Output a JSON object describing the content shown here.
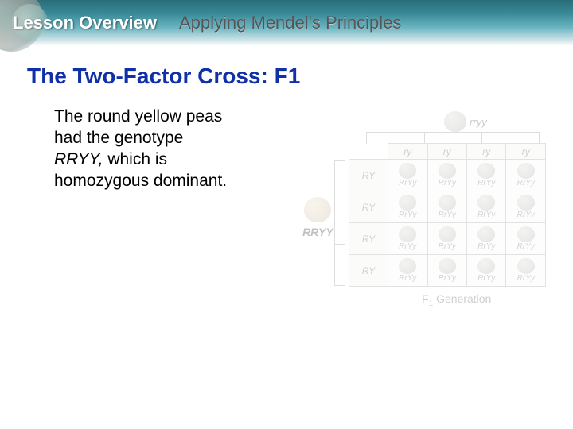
{
  "header": {
    "lesson_label": "Lesson Overview",
    "topic": "Applying Mendel's Principles",
    "bg_gradient": [
      "#2a6d7a",
      "#3a8a98",
      "#6bb5c2",
      "#c8e0e4",
      "#ffffff"
    ]
  },
  "section": {
    "title": "The Two-Factor Cross: F1",
    "title_color": "#1030a8",
    "title_fontsize": 28
  },
  "body": {
    "line1": "The round yellow peas",
    "line2": "had the genotype",
    "line3_em": "RRYY,",
    "line3_rest": " which is",
    "line4": "homozygous dominant.",
    "fontsize": 21,
    "color": "#000000"
  },
  "diagram": {
    "opacity": 0.28,
    "top_parent_genotype": "rryy",
    "left_parent_genotype": "RRYY",
    "col_gametes": [
      "ry",
      "ry",
      "ry",
      "ry"
    ],
    "row_gametes": [
      "RY",
      "RY",
      "RY",
      "RY"
    ],
    "offspring_genotype": "RrYy",
    "caption_prefix": "F",
    "caption_sub": "1",
    "caption_rest": " Generation",
    "grid_border_color": "#999999",
    "pea_top_color": "#b8b8b0",
    "pea_left_color": "#d0c0a0",
    "pea_cell_color": "#b8b8b0"
  }
}
